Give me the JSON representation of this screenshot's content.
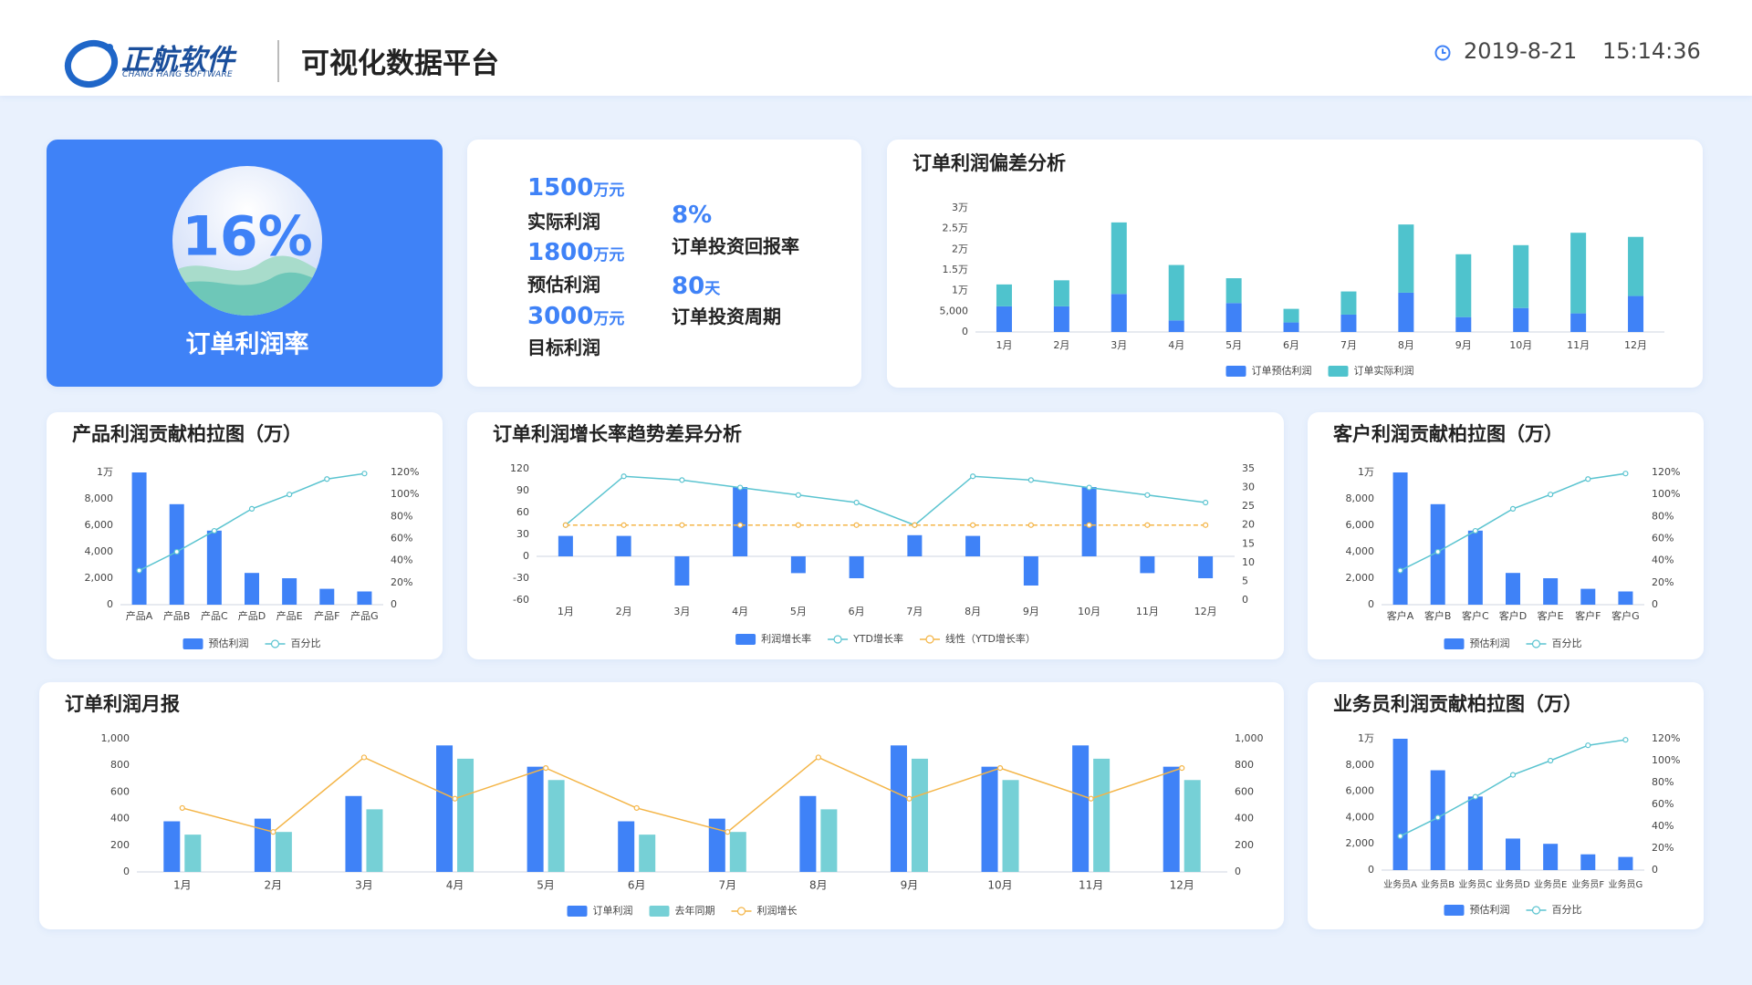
{
  "header": {
    "logo_name": "正航软件",
    "logo_sub": "CHANG HANG SOFTWARE",
    "title": "可视化数据平台",
    "date": "2019-8-21",
    "time": "15:14:36"
  },
  "rate_card": {
    "value": "16%",
    "label": "订单利润率"
  },
  "kpis": [
    {
      "value": 1500,
      "unit": "万元",
      "label": "实际利润"
    },
    {
      "value": 1800,
      "unit": "万元",
      "label": "预估利润"
    },
    {
      "value": 3000,
      "unit": "万元",
      "label": "目标利润"
    },
    {
      "value": "8%",
      "label": "订单投资回报率"
    },
    {
      "value": 80,
      "unit": "天",
      "label": "订单投资周期"
    }
  ],
  "chart_data": [
    {
      "type": "stacked_bar",
      "title": "订单利润偏差分析",
      "categories": [
        "1月",
        "2月",
        "3月",
        "4月",
        "5月",
        "6月",
        "7月",
        "8月",
        "9月",
        "10月",
        "11月",
        "12月"
      ],
      "series": [
        {
          "name": "订单预估利润",
          "type": "bar",
          "color": "#3f82f7",
          "values": [
            6200,
            6200,
            9200,
            2800,
            7000,
            2300,
            4200,
            9500,
            3600,
            5800,
            4500,
            8700
          ]
        },
        {
          "name": "订单实际利润",
          "type": "bar",
          "color": "#4fc3cd",
          "values": [
            5300,
            6300,
            17300,
            13400,
            6000,
            3300,
            5600,
            16500,
            15200,
            15200,
            19500,
            14300
          ]
        }
      ],
      "ylim": [
        0,
        30000
      ],
      "yticks": [
        0,
        {
          "value": 5000,
          "label": "5,000"
        },
        {
          "value": 10000,
          "label": "1万"
        },
        {
          "value": 15000,
          "label": "1.5万"
        },
        {
          "value": 20000,
          "label": "2万"
        },
        {
          "value": 25000,
          "label": "2.5万"
        },
        {
          "value": 30000,
          "label": "3万"
        }
      ]
    },
    {
      "type": "combo",
      "title": "产品利润贡献柏拉图（万）",
      "categories": [
        "产品A",
        "产品B",
        "产品C",
        "产品D",
        "产品E",
        "产品F",
        "产品G"
      ],
      "series": [
        {
          "name": "预估利润",
          "type": "bar",
          "color": "#3f82f7",
          "values": [
            10000,
            7600,
            5600,
            2400,
            2000,
            1200,
            1000
          ]
        },
        {
          "name": "百分比",
          "type": "line",
          "axis": "y2",
          "color": "#5bc4d0",
          "values": [
            31,
            48,
            67,
            87,
            100,
            114,
            119
          ]
        }
      ],
      "ylim": [
        0,
        10000
      ],
      "yticks": [
        0,
        {
          "value": 2000,
          "label": "2,000"
        },
        {
          "value": 4000,
          "label": "4,000"
        },
        {
          "value": 6000,
          "label": "6,000"
        },
        {
          "value": 8000,
          "label": "8,000"
        },
        {
          "value": 10000,
          "label": "1万"
        }
      ],
      "y2lim": [
        0,
        120
      ],
      "y2ticks": [
        0,
        {
          "value": 20,
          "label": "20%"
        },
        {
          "value": 40,
          "label": "40%"
        },
        {
          "value": 60,
          "label": "60%"
        },
        {
          "value": 80,
          "label": "80%"
        },
        {
          "value": 100,
          "label": "100%"
        },
        {
          "value": 120,
          "label": "120%"
        }
      ]
    },
    {
      "type": "combo",
      "title": "订单利润增长率趋势差异分析",
      "categories": [
        "1月",
        "2月",
        "3月",
        "4月",
        "5月",
        "6月",
        "7月",
        "8月",
        "9月",
        "10月",
        "11月",
        "12月"
      ],
      "series": [
        {
          "name": "利润增长率",
          "type": "bar",
          "color": "#3f82f7",
          "values": [
            28,
            28,
            -40,
            95,
            -23,
            -30,
            29,
            28,
            -40,
            95,
            -23,
            -30
          ]
        },
        {
          "name": "YTD增长率",
          "type": "line",
          "axis": "y2",
          "color": "#5bc4d0",
          "values": [
            20,
            33,
            32,
            30,
            28,
            26,
            20,
            33,
            32,
            30,
            28,
            26
          ]
        },
        {
          "name": "线性（YTD增长率）",
          "type": "line",
          "axis": "y2",
          "dashed": true,
          "color": "#f4b547",
          "values": [
            20,
            20,
            20,
            20,
            20,
            20,
            20,
            20,
            20,
            20,
            20,
            20
          ]
        }
      ],
      "ylim": [
        -60,
        120
      ],
      "yticks": [
        -60,
        -30,
        0,
        30,
        60,
        90,
        120
      ],
      "y2lim": [
        0,
        35
      ],
      "y2ticks": [
        0,
        5,
        10,
        15,
        20,
        25,
        30,
        35
      ]
    },
    {
      "type": "combo",
      "title": "客户利润贡献柏拉图（万）",
      "categories": [
        "客户A",
        "客户B",
        "客户C",
        "客户D",
        "客户E",
        "客户F",
        "客户G"
      ],
      "series": [
        {
          "name": "预估利润",
          "type": "bar",
          "color": "#3f82f7",
          "values": [
            10000,
            7600,
            5600,
            2400,
            2000,
            1200,
            1000
          ]
        },
        {
          "name": "百分比",
          "type": "line",
          "axis": "y2",
          "color": "#5bc4d0",
          "values": [
            31,
            48,
            67,
            87,
            100,
            114,
            119
          ]
        }
      ],
      "ylim": [
        0,
        10000
      ],
      "yticks": [
        0,
        {
          "value": 2000,
          "label": "2,000"
        },
        {
          "value": 4000,
          "label": "4,000"
        },
        {
          "value": 6000,
          "label": "6,000"
        },
        {
          "value": 8000,
          "label": "8,000"
        },
        {
          "value": 10000,
          "label": "1万"
        }
      ],
      "y2lim": [
        0,
        120
      ],
      "y2ticks": [
        0,
        {
          "value": 20,
          "label": "20%"
        },
        {
          "value": 40,
          "label": "40%"
        },
        {
          "value": 60,
          "label": "60%"
        },
        {
          "value": 80,
          "label": "80%"
        },
        {
          "value": 100,
          "label": "100%"
        },
        {
          "value": 120,
          "label": "120%"
        }
      ]
    },
    {
      "type": "combo",
      "title": "订单利润月报",
      "categories": [
        "1月",
        "2月",
        "3月",
        "4月",
        "5月",
        "6月",
        "7月",
        "8月",
        "9月",
        "10月",
        "11月",
        "12月"
      ],
      "series": [
        {
          "name": "订单利润",
          "type": "bar",
          "color": "#3f82f7",
          "values": [
            380,
            400,
            570,
            950,
            790,
            380,
            400,
            570,
            950,
            790,
            950,
            790
          ]
        },
        {
          "name": "去年同期",
          "type": "bar",
          "color": "#76d0d6",
          "values": [
            280,
            300,
            470,
            850,
            690,
            280,
            300,
            470,
            850,
            690,
            850,
            690
          ]
        },
        {
          "name": "利润增长",
          "type": "line",
          "axis": "y2",
          "color": "#f4b547",
          "values": [
            480,
            300,
            860,
            550,
            780,
            480,
            300,
            860,
            550,
            780,
            550,
            780
          ]
        }
      ],
      "ylim": [
        0,
        1000
      ],
      "yticks": [
        0,
        200,
        400,
        600,
        800,
        {
          "value": 1000,
          "label": "1,000"
        }
      ],
      "y2lim": [
        0,
        1000
      ],
      "y2ticks": [
        0,
        200,
        400,
        600,
        800,
        {
          "value": 1000,
          "label": "1,000"
        }
      ]
    },
    {
      "type": "combo",
      "title": "业务员利润贡献柏拉图（万）",
      "categories": [
        "业务员A",
        "业务员B",
        "业务员C",
        "业务员D",
        "业务员E",
        "业务员F",
        "业务员G"
      ],
      "series": [
        {
          "name": "预估利润",
          "type": "bar",
          "color": "#3f82f7",
          "values": [
            10000,
            7600,
            5600,
            2400,
            2000,
            1200,
            1000
          ]
        },
        {
          "name": "百分比",
          "type": "line",
          "axis": "y2",
          "color": "#5bc4d0",
          "values": [
            31,
            48,
            67,
            87,
            100,
            114,
            119
          ]
        }
      ],
      "ylim": [
        0,
        10000
      ],
      "yticks": [
        0,
        {
          "value": 2000,
          "label": "2,000"
        },
        {
          "value": 4000,
          "label": "4,000"
        },
        {
          "value": 6000,
          "label": "6,000"
        },
        {
          "value": 8000,
          "label": "8,000"
        },
        {
          "value": 10000,
          "label": "1万"
        }
      ],
      "y2lim": [
        0,
        120
      ],
      "y2ticks": [
        0,
        {
          "value": 20,
          "label": "20%"
        },
        {
          "value": 40,
          "label": "40%"
        },
        {
          "value": 60,
          "label": "60%"
        },
        {
          "value": 80,
          "label": "80%"
        },
        {
          "value": 100,
          "label": "100%"
        },
        {
          "value": 120,
          "label": "120%"
        }
      ]
    }
  ]
}
